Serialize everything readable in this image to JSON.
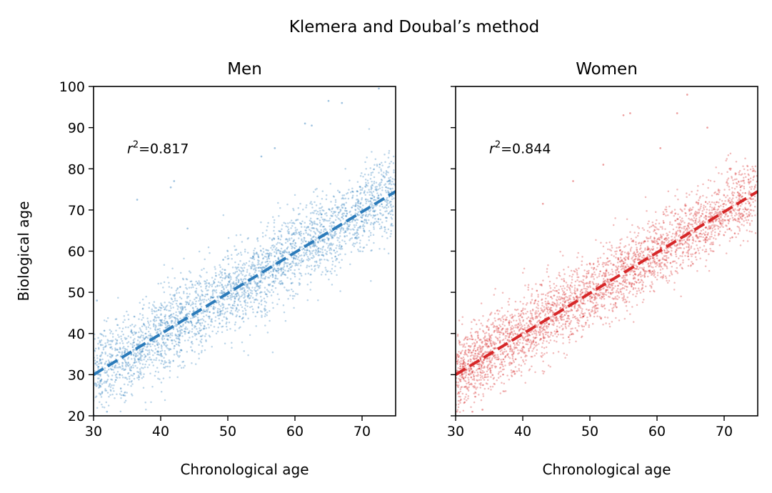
{
  "figure_title": "Klemera and Doubal’s method",
  "chart_data": [
    {
      "type": "scatter",
      "title": "Men",
      "xlabel": "Chronological age",
      "ylabel": "Biological age",
      "xlim": [
        30,
        75
      ],
      "ylim": [
        20,
        100
      ],
      "xticks": [
        30,
        40,
        50,
        60,
        70
      ],
      "yticks": [
        20,
        30,
        40,
        50,
        60,
        70,
        80,
        90,
        100
      ],
      "show_yticklabels": true,
      "color": "#2b7bba",
      "annotation": {
        "prefix": "r",
        "superscript": "2",
        "text": "=0.817",
        "x": 35,
        "y": 85
      },
      "fit_line": {
        "style": "dashed",
        "x": [
          30,
          75
        ],
        "y": [
          30,
          74.5
        ]
      },
      "scatter": {
        "n_points": 3200,
        "x_range": [
          30,
          75
        ],
        "approx_relation": "y ≈ x, residual sd ≈ 5"
      },
      "series": [
        {
          "name": "Men",
          "points": [
            [
              31,
              30
            ],
            [
              35,
              35
            ],
            [
              40,
              40
            ],
            [
              45,
              44
            ],
            [
              50,
              49
            ],
            [
              55,
              54
            ],
            [
              60,
              59
            ],
            [
              65,
              64
            ],
            [
              70,
              70
            ],
            [
              74,
              74
            ],
            [
              36.5,
              72.5
            ],
            [
              42,
              77
            ],
            [
              41.5,
              75.5
            ],
            [
              65,
              96.5
            ],
            [
              67,
              96
            ],
            [
              72.5,
              99.5
            ],
            [
              61.5,
              91
            ],
            [
              62.5,
              90.5
            ],
            [
              55,
              83
            ],
            [
              57,
              85
            ],
            [
              44,
              65.5
            ],
            [
              34.5,
              25
            ],
            [
              32,
              21
            ],
            [
              30.5,
              48
            ]
          ]
        }
      ]
    },
    {
      "type": "scatter",
      "title": "Women",
      "xlabel": "Chronological age",
      "ylabel": "",
      "xlim": [
        30,
        75
      ],
      "ylim": [
        20,
        100
      ],
      "xticks": [
        30,
        40,
        50,
        60,
        70
      ],
      "yticks": [
        20,
        30,
        40,
        50,
        60,
        70,
        80,
        90,
        100
      ],
      "show_yticklabels": false,
      "color": "#d62728",
      "annotation": {
        "prefix": "r",
        "superscript": "2",
        "text": "=0.844",
        "x": 35,
        "y": 85
      },
      "fit_line": {
        "style": "dashed",
        "x": [
          30,
          75
        ],
        "y": [
          30,
          74.5
        ]
      },
      "scatter": {
        "n_points": 3400,
        "x_range": [
          30,
          75
        ],
        "approx_relation": "y ≈ x, residual sd ≈ 4.5"
      },
      "series": [
        {
          "name": "Women",
          "points": [
            [
              31,
              30
            ],
            [
              35,
              35
            ],
            [
              40,
              39
            ],
            [
              45,
              44
            ],
            [
              50,
              49
            ],
            [
              55,
              54
            ],
            [
              60,
              59
            ],
            [
              65,
              64
            ],
            [
              70,
              70
            ],
            [
              74,
              74
            ],
            [
              64.5,
              98
            ],
            [
              63,
              93.5
            ],
            [
              55,
              93
            ],
            [
              56,
              93.5
            ],
            [
              67.5,
              90
            ],
            [
              60.5,
              85
            ],
            [
              52,
              81
            ],
            [
              47.5,
              77
            ],
            [
              43,
              71.5
            ],
            [
              34,
              21.5
            ],
            [
              32.5,
              21
            ]
          ]
        }
      ]
    }
  ]
}
